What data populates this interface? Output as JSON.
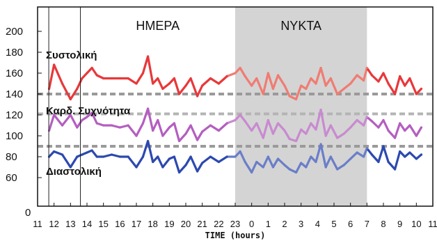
{
  "chart_data": {
    "type": "line",
    "xlabel": "TIME (hours)",
    "ylabel": "",
    "ylim": [
      50,
      210
    ],
    "xlim": [
      11,
      35
    ],
    "grid": false,
    "x_tick_labels": [
      "11",
      "12",
      "13",
      "14",
      "15",
      "16",
      "17",
      "18",
      "19",
      "20",
      "21",
      "22",
      "23",
      "0",
      "1",
      "2",
      "3",
      "4",
      "5",
      "6",
      "7",
      "8",
      "9",
      "10",
      "11"
    ],
    "y_ticks": [
      200,
      180,
      160,
      140,
      120,
      100,
      80,
      60
    ],
    "y_tick_labels": [
      "200",
      "180",
      "160",
      "140",
      "120",
      "100",
      "80",
      "60"
    ],
    "y_axis_bottom_label": "0",
    "periods": [
      {
        "label": "ΗΜΕΡΑ",
        "from": 13.6,
        "to": 23,
        "shaded": false,
        "color": "#ffffff"
      },
      {
        "label": "ΝΥΚΤΑ",
        "from": 23,
        "to": 31,
        "shaded": true,
        "color": "#d4d4d4"
      }
    ],
    "reference_lines": [
      {
        "y": 140,
        "color": "#9a9a9a"
      },
      {
        "y": 121,
        "color": "#b4b4b4"
      },
      {
        "y": 90,
        "color": "#9a9a9a"
      }
    ],
    "series": [
      {
        "name": "Συστολική",
        "color": "#e8383a",
        "night_color": "#f07c72",
        "x": [
          11.7,
          12.0,
          12.5,
          13.0,
          13.4,
          13.7,
          14.0,
          14.3,
          14.6,
          15.0,
          15.5,
          16.0,
          16.5,
          17.0,
          17.4,
          17.7,
          18.0,
          18.3,
          18.6,
          19.0,
          19.3,
          19.6,
          20.0,
          20.3,
          20.7,
          21.0,
          21.5,
          22.0,
          22.5,
          23.0,
          23.3,
          23.6,
          24.0,
          24.3,
          24.7,
          25.0,
          25.3,
          25.6,
          26.0,
          26.3,
          26.7,
          27.0,
          27.3,
          27.6,
          27.9,
          28.2,
          28.5,
          28.8,
          29.2,
          29.6,
          30.0,
          30.4,
          30.8,
          31.0,
          31.3,
          31.7,
          32.0,
          32.3,
          32.7,
          33.0,
          33.3,
          33.6,
          34.0,
          34.3
        ],
        "values": [
          145,
          168,
          150,
          135,
          145,
          155,
          160,
          165,
          158,
          155,
          155,
          155,
          155,
          150,
          160,
          176,
          150,
          155,
          145,
          150,
          155,
          140,
          148,
          155,
          138,
          148,
          155,
          150,
          157,
          160,
          165,
          157,
          148,
          155,
          140,
          160,
          145,
          158,
          148,
          138,
          135,
          148,
          145,
          155,
          150,
          165,
          148,
          155,
          140,
          145,
          150,
          158,
          153,
          165,
          158,
          152,
          160,
          150,
          140,
          157,
          148,
          155,
          140,
          145
        ]
      },
      {
        "name": "Καρδ. Συχνότητα",
        "color": "#b45ec0",
        "night_color": "#c88ad0",
        "x": [
          11.7,
          12.0,
          12.5,
          13.0,
          13.4,
          13.7,
          14.0,
          14.3,
          14.6,
          15.0,
          15.5,
          16.0,
          16.5,
          17.0,
          17.4,
          17.7,
          18.0,
          18.3,
          18.6,
          19.0,
          19.3,
          19.6,
          20.0,
          20.3,
          20.7,
          21.0,
          21.5,
          22.0,
          22.5,
          23.0,
          23.3,
          23.6,
          24.0,
          24.3,
          24.7,
          25.0,
          25.3,
          25.6,
          26.0,
          26.3,
          26.7,
          27.0,
          27.3,
          27.6,
          27.9,
          28.2,
          28.5,
          28.8,
          29.2,
          29.6,
          30.0,
          30.4,
          30.8,
          31.0,
          31.3,
          31.7,
          32.0,
          32.3,
          32.7,
          33.0,
          33.3,
          33.6,
          34.0,
          34.3
        ],
        "values": [
          105,
          120,
          110,
          120,
          108,
          115,
          118,
          122,
          112,
          110,
          110,
          108,
          110,
          100,
          112,
          126,
          105,
          115,
          100,
          108,
          112,
          95,
          102,
          110,
          96,
          104,
          110,
          105,
          112,
          115,
          120,
          114,
          105,
          112,
          98,
          115,
          102,
          112,
          105,
          97,
          95,
          106,
          102,
          112,
          106,
          125,
          100,
          110,
          98,
          102,
          108,
          115,
          110,
          118,
          114,
          108,
          115,
          105,
          98,
          112,
          105,
          110,
          100,
          108
        ]
      },
      {
        "name": "Διαστολική",
        "color": "#2c49b0",
        "night_color": "#6a7ec8",
        "x": [
          11.7,
          12.0,
          12.5,
          13.0,
          13.4,
          13.7,
          14.0,
          14.3,
          14.6,
          15.0,
          15.5,
          16.0,
          16.5,
          17.0,
          17.4,
          17.7,
          18.0,
          18.3,
          18.6,
          19.0,
          19.3,
          19.6,
          20.0,
          20.3,
          20.7,
          21.0,
          21.5,
          22.0,
          22.5,
          23.0,
          23.3,
          23.6,
          24.0,
          24.3,
          24.7,
          25.0,
          25.3,
          25.6,
          26.0,
          26.3,
          26.7,
          27.0,
          27.3,
          27.6,
          27.9,
          28.2,
          28.5,
          28.8,
          29.2,
          29.6,
          30.0,
          30.4,
          30.8,
          31.0,
          31.3,
          31.7,
          32.0,
          32.3,
          32.7,
          33.0,
          33.3,
          33.6,
          34.0,
          34.3
        ],
        "values": [
          80,
          85,
          82,
          70,
          80,
          82,
          84,
          86,
          80,
          80,
          82,
          80,
          80,
          70,
          80,
          95,
          75,
          80,
          70,
          78,
          80,
          65,
          72,
          80,
          66,
          74,
          80,
          75,
          80,
          80,
          85,
          75,
          65,
          75,
          70,
          80,
          70,
          78,
          72,
          68,
          65,
          74,
          70,
          80,
          75,
          92,
          70,
          80,
          68,
          72,
          78,
          84,
          80,
          88,
          82,
          75,
          90,
          75,
          68,
          85,
          80,
          84,
          78,
          82
        ]
      }
    ]
  }
}
